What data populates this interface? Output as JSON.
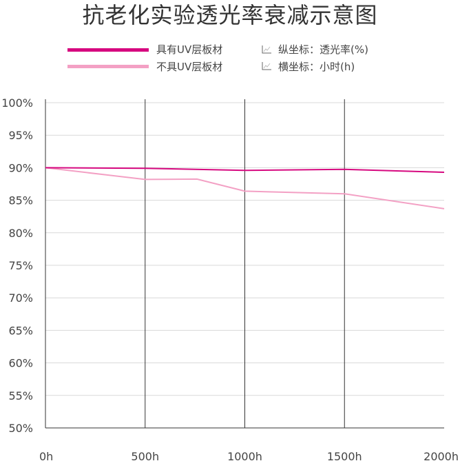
{
  "title": "抗老化实验透光率衰减示意图",
  "legend": {
    "series_labels": [
      "具有UV层板材",
      "不具UV层板材"
    ],
    "y_axis_note": "纵坐标：透光率(%)",
    "x_axis_note": "横坐标：小时(h)"
  },
  "colors": {
    "with_uv": "#d6087f",
    "without_uv": "#f3a0c4",
    "grid": "#d8d8d8",
    "axis": "#333333"
  },
  "chart_data": {
    "type": "line",
    "title": "抗老化实验透光率衰减示意图",
    "xlabel": "小时(h)",
    "ylabel": "透光率(%)",
    "xlim": [
      0,
      2000
    ],
    "ylim": [
      50,
      100
    ],
    "x_ticks": [
      0,
      500,
      1000,
      1500,
      2000
    ],
    "x_tick_labels": [
      "0h",
      "500h",
      "1000h",
      "1500h",
      "2000h"
    ],
    "y_ticks": [
      100,
      95,
      90,
      85,
      80,
      75,
      70,
      65,
      60,
      55,
      50
    ],
    "y_tick_labels": [
      "100%",
      "95%",
      "90%",
      "85%",
      "80%",
      "75%",
      "70%",
      "65%",
      "60%",
      "55%",
      "50%"
    ],
    "grid": true,
    "legend_position": "top",
    "series": [
      {
        "name": "具有UV层板材",
        "x": [
          0,
          500,
          1000,
          1500,
          2000
        ],
        "y": [
          90.0,
          89.9,
          89.6,
          89.75,
          89.3
        ]
      },
      {
        "name": "不具UV层板材",
        "x": [
          0,
          500,
          760,
          1000,
          1500,
          2000
        ],
        "y": [
          90.0,
          88.2,
          88.25,
          86.4,
          86.0,
          83.7
        ]
      }
    ]
  }
}
